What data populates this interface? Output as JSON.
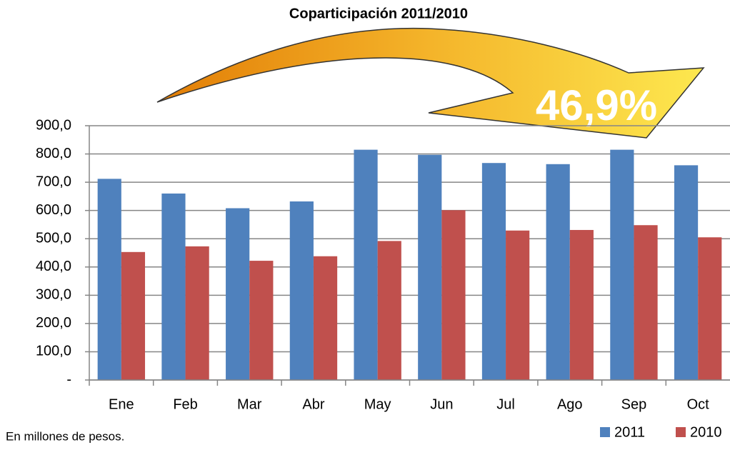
{
  "chart_data": {
    "type": "bar",
    "title": "Coparticipación 2011/2010",
    "annotation": "46,9%",
    "note": "En millones de pesos.",
    "categories": [
      "Ene",
      "Feb",
      "Mar",
      "Abr",
      "May",
      "Jun",
      "Jul",
      "Ago",
      "Sep",
      "Oct"
    ],
    "series": [
      {
        "name": "2011",
        "color": "#4f81bd",
        "values": [
          712,
          660,
          608,
          632,
          815,
          797,
          768,
          764,
          815,
          760
        ]
      },
      {
        "name": "2010",
        "color": "#c0504d",
        "values": [
          453,
          473,
          422,
          438,
          492,
          601,
          529,
          531,
          548,
          505
        ]
      }
    ],
    "ylim": [
      0,
      900
    ],
    "yticks": [
      {
        "value": 0,
        "label": "-"
      },
      {
        "value": 100,
        "label": "100,0"
      },
      {
        "value": 200,
        "label": "200,0"
      },
      {
        "value": 300,
        "label": "300,0"
      },
      {
        "value": 400,
        "label": "400,0"
      },
      {
        "value": 500,
        "label": "500,0"
      },
      {
        "value": 600,
        "label": "600,0"
      },
      {
        "value": 700,
        "label": "700,0"
      },
      {
        "value": 800,
        "label": "800,0"
      },
      {
        "value": 900,
        "label": "900,0"
      }
    ],
    "grid": true
  }
}
